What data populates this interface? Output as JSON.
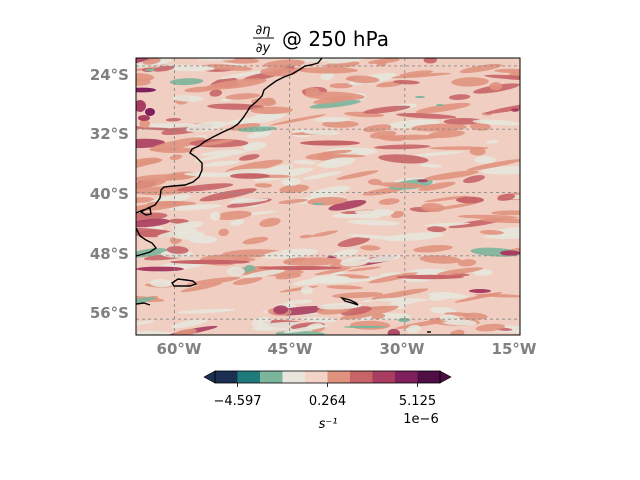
{
  "title": {
    "numerator": "∂η",
    "denominator": "∂y",
    "suffix": "@ 250 hPa"
  },
  "map": {
    "region": "South Atlantic off South America",
    "lon_range": [
      -65,
      -15
    ],
    "lat_range": [
      -58,
      -23
    ],
    "lon_ticks": [
      {
        "value": -60,
        "label": "60°W"
      },
      {
        "value": -45,
        "label": "45°W"
      },
      {
        "value": -30,
        "label": "30°W"
      },
      {
        "value": -15,
        "label": "15°W"
      }
    ],
    "lat_ticks": [
      {
        "value": -24,
        "label": "24°S"
      },
      {
        "value": -32,
        "label": "32°S"
      },
      {
        "value": -40,
        "label": "40°S"
      },
      {
        "value": -48,
        "label": "48°S"
      },
      {
        "value": -56,
        "label": "56°S"
      }
    ],
    "gridlines": true,
    "background_color": "#f0cfc2",
    "coastline_color": "#000000"
  },
  "colorbar": {
    "colors": [
      "#1b2f52",
      "#1f7a7c",
      "#7bb59b",
      "#e8e6dc",
      "#f2d3c6",
      "#e0927e",
      "#c76468",
      "#a83c61",
      "#7f1f5c",
      "#4f0f45"
    ],
    "ticks": [
      {
        "value": -4.597,
        "label": "−4.597"
      },
      {
        "value": 0.264,
        "label": "0.264"
      },
      {
        "value": 5.125,
        "label": "5.125"
      }
    ],
    "vmin": -5.812,
    "vmax": 6.34,
    "label": "s⁻¹",
    "exponent": "1e−6",
    "extend": "both"
  }
}
